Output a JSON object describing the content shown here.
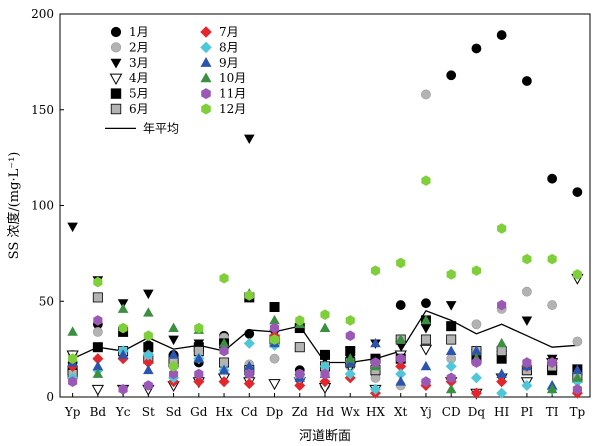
{
  "chart_data": {
    "type": "scatter",
    "xlabel": "河道断面",
    "ylabel": "SS 浓度/(mg·L⁻¹)",
    "ylim": [
      0,
      200
    ],
    "yticks": [
      0,
      50,
      100,
      150,
      200
    ],
    "categories": [
      "Yp",
      "Bd",
      "Yc",
      "St",
      "Sd",
      "Gd",
      "Hx",
      "Cd",
      "Dp",
      "Zd",
      "Hd",
      "Wx",
      "HX",
      "Xt",
      "Yj",
      "CD",
      "Dq",
      "HI",
      "PI",
      "TI",
      "Tp"
    ],
    "legend_position": "top-left",
    "series": [
      {
        "name": "1月",
        "marker": "circle",
        "color": "#000000",
        "values": [
          18,
          38,
          22,
          27,
          22,
          18,
          32,
          33,
          30,
          14,
          6,
          20,
          12,
          48,
          49,
          168,
          182,
          189,
          165,
          114,
          107
        ]
      },
      {
        "name": "2月",
        "marker": "circle",
        "color": "#b3b3b3",
        "values": [
          22,
          34,
          22,
          24,
          20,
          22,
          31,
          17,
          20,
          12,
          6,
          16,
          10,
          6,
          158,
          20,
          38,
          46,
          55,
          48,
          29
        ]
      },
      {
        "name": "3月",
        "marker": "tri-down",
        "color": "#000000",
        "values": [
          89,
          61,
          49,
          54,
          30,
          28,
          26,
          135,
          33,
          10,
          20,
          24,
          28,
          27,
          36,
          48,
          23,
          22,
          40,
          20,
          15
        ]
      },
      {
        "name": "4月",
        "marker": "tri-down-open",
        "color": "#000000",
        "values": [
          22,
          4,
          4,
          4,
          6,
          8,
          10,
          8,
          7,
          8,
          5,
          16,
          4,
          22,
          25,
          8,
          2,
          10,
          8,
          18,
          62
        ]
      },
      {
        "name": "5月",
        "marker": "square",
        "color": "#000000",
        "values": [
          14,
          26,
          34,
          26,
          20,
          26,
          28,
          52,
          47,
          36,
          22,
          24,
          20,
          20,
          40,
          37,
          20,
          20,
          14,
          14,
          14
        ]
      },
      {
        "name": "6月",
        "marker": "square",
        "color": "#b3b3b3",
        "values": [
          12,
          52,
          24,
          20,
          18,
          24,
          18,
          14,
          30,
          26,
          16,
          18,
          14,
          30,
          30,
          30,
          24,
          24,
          14,
          16,
          10
        ]
      },
      {
        "name": "7月",
        "marker": "diamond",
        "color": "#e3262b",
        "values": [
          16,
          20,
          20,
          18,
          8,
          8,
          8,
          7,
          32,
          6,
          8,
          10,
          2,
          16,
          6,
          8,
          2,
          8,
          16,
          18,
          2
        ]
      },
      {
        "name": "8月",
        "marker": "diamond",
        "color": "#4fc7d9",
        "values": [
          10,
          14,
          24,
          22,
          10,
          20,
          14,
          28,
          27,
          10,
          16,
          12,
          4,
          12,
          8,
          16,
          10,
          2,
          6,
          4,
          8
        ]
      },
      {
        "name": "9月",
        "marker": "tri-up",
        "color": "#2a54b0",
        "values": [
          18,
          16,
          22,
          14,
          22,
          20,
          14,
          16,
          28,
          10,
          12,
          18,
          28,
          8,
          16,
          24,
          24,
          12,
          16,
          6,
          14
        ]
      },
      {
        "name": "10月",
        "marker": "tri-up",
        "color": "#3a8f40",
        "values": [
          34,
          12,
          46,
          44,
          36,
          35,
          28,
          54,
          40,
          38,
          36,
          20,
          16,
          30,
          40,
          4,
          20,
          28,
          18,
          4,
          10
        ]
      },
      {
        "name": "11月",
        "marker": "hexagon",
        "color": "#9b59b6",
        "values": [
          8,
          40,
          4,
          6,
          12,
          12,
          24,
          12,
          36,
          12,
          12,
          32,
          18,
          20,
          8,
          10,
          18,
          48,
          18,
          18,
          4
        ]
      },
      {
        "name": "12月",
        "marker": "hexagon",
        "color": "#7fcf3a",
        "values": [
          20,
          60,
          36,
          32,
          16,
          36,
          62,
          53,
          30,
          40,
          43,
          40,
          66,
          70,
          113,
          64,
          66,
          88,
          72,
          72,
          64
        ]
      }
    ],
    "annual_mean": {
      "name": "年平均",
      "color": "#000000",
      "values": [
        20,
        26,
        24,
        31,
        25,
        27,
        24,
        35,
        34,
        37,
        18,
        18,
        20,
        24,
        45,
        40,
        33,
        38,
        32,
        26,
        27
      ]
    }
  }
}
